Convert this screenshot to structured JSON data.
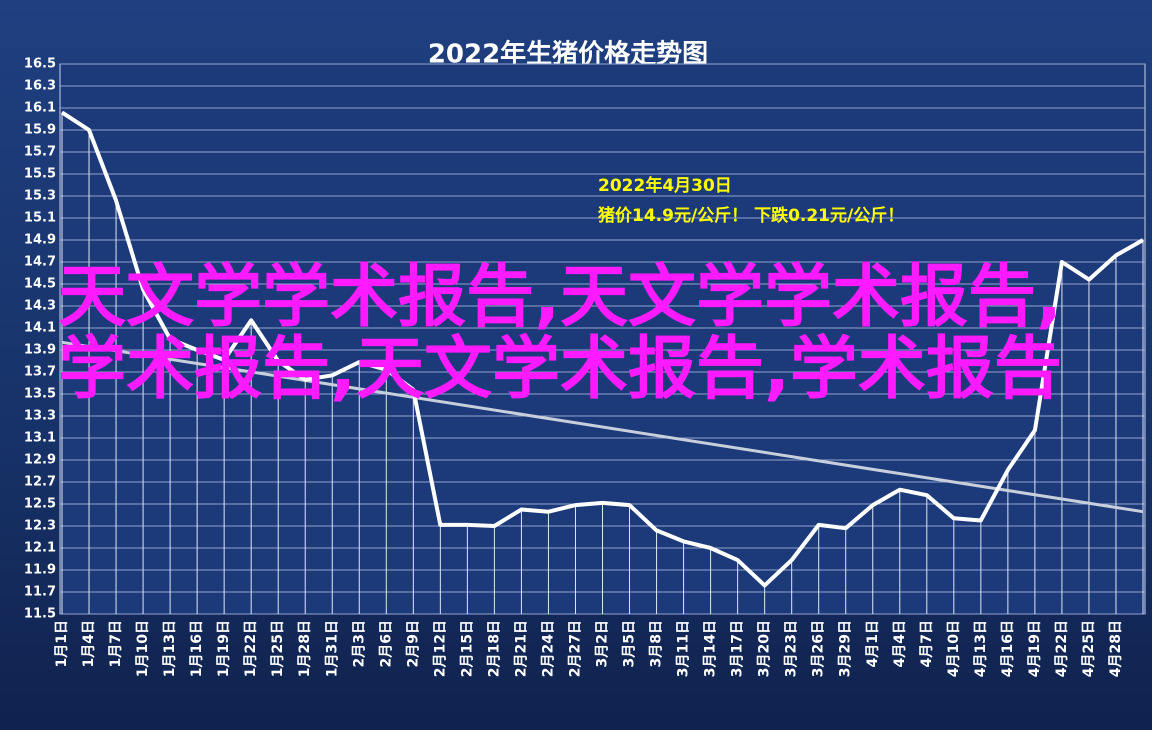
{
  "chart_data": {
    "type": "line",
    "title": "2022年生猪价格走势图",
    "annotation": [
      "2022年4月30日",
      "猪价14.9元/公斤！ 下跌0.21元/公斤！"
    ],
    "watermark": "天文学学术报告,天文学学术报告,学术报告,天文学术报告,学术报告",
    "categories": [
      "1月1日",
      "1月4日",
      "1月7日",
      "1月10日",
      "1月13日",
      "1月16日",
      "1月19日",
      "1月22日",
      "1月25日",
      "1月28日",
      "1月31日",
      "2月3日",
      "2月6日",
      "2月9日",
      "2月12日",
      "2月15日",
      "2月18日",
      "2月21日",
      "2月24日",
      "2月27日",
      "3月2日",
      "3月5日",
      "3月8日",
      "3月11日",
      "3月14日",
      "3月17日",
      "3月20日",
      "3月23日",
      "3月26日",
      "3月29日",
      "4月1日",
      "4月4日",
      "4月7日",
      "4月10日",
      "4月13日",
      "4月16日",
      "4月19日",
      "4月22日",
      "4月25日",
      "4月28日",
      null
    ],
    "values": [
      16.06,
      15.9,
      15.26,
      14.45,
      14.0,
      13.9,
      13.81,
      14.17,
      13.8,
      13.63,
      13.67,
      13.79,
      13.72,
      13.54,
      12.31,
      12.31,
      12.3,
      12.45,
      12.43,
      12.49,
      12.51,
      12.49,
      12.26,
      12.16,
      12.1,
      11.99,
      11.76,
      11.99,
      12.31,
      12.28,
      12.49,
      12.63,
      12.58,
      12.37,
      12.35,
      12.81,
      13.17,
      14.7,
      14.54,
      14.76,
      14.9
    ],
    "color": "#ffffff",
    "trendline": {
      "values": [
        13.97,
        12.43
      ],
      "color": "#c8cfdc"
    },
    "ylim": [
      11.5,
      16.5
    ],
    "yticks": [
      11.5,
      11.7,
      11.9,
      12.1,
      12.3,
      12.5,
      12.7,
      12.9,
      13.1,
      13.3,
      13.5,
      13.7,
      13.9,
      14.1,
      14.3,
      14.5,
      14.7,
      14.9,
      15.1,
      15.3,
      15.5,
      15.7,
      15.9,
      16.1,
      16.3,
      16.5
    ],
    "grid": true
  }
}
